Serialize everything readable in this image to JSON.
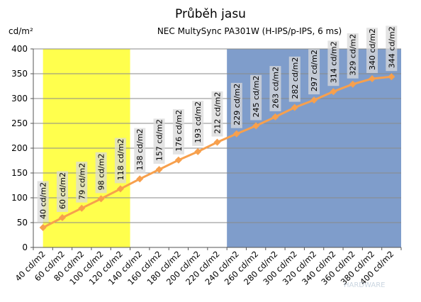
{
  "chart_data": {
    "type": "line",
    "title": "Průběh jasu",
    "subtitle": "NEC MultySync PA301W (H-IPS/p-IPS, 6 ms)",
    "ylabel": "cd/m²",
    "xlabel": "",
    "ylim": [
      0,
      400
    ],
    "yticks": [
      0,
      50,
      100,
      150,
      200,
      250,
      300,
      350,
      400
    ],
    "categories": [
      "40 cd/m2",
      "60 cd/m2",
      "80 cd/m2",
      "100 cd/m2",
      "120 cd/m2",
      "140 cd/m2",
      "160 cd/m2",
      "180 cd/m2",
      "200 cd/m2",
      "220 cd/m2",
      "240 cd/m2",
      "260 cd/m2",
      "280 cd/m2",
      "300 cd/m2",
      "320 cd/m2",
      "340 cd/m2",
      "360 cd/m2",
      "380 cd/m2",
      "400 cd/m2"
    ],
    "series": [
      {
        "color": "#f7a04d",
        "values": [
          40,
          60,
          79,
          98,
          118,
          138,
          157,
          176,
          193,
          212,
          229,
          245,
          263,
          282,
          297,
          314,
          329,
          340,
          344
        ],
        "labels": [
          "40 cd/m2",
          "60 cd/m2",
          "79 cd/m2",
          "98 cd/m2",
          "118 cd/m2",
          "138 cd/m2",
          "157 cd/m2",
          "176 cd/m2",
          "193 cd/m2",
          "212 cd/m2",
          "229 cd/m2",
          "245 cd/m2",
          "263 cd/m2",
          "282 cd/m2",
          "297 cd/m2",
          "314 cd/m2",
          "329 cd/m2",
          "340 cd/m2",
          "344 cd/m2"
        ]
      }
    ],
    "bands": [
      {
        "from_category": 0,
        "to_category": 4.5,
        "color": "#ffff4d"
      },
      {
        "from_category": 9.5,
        "to_category": 18.5,
        "color": "#7f9dcb"
      }
    ],
    "grid": true,
    "legend": "none",
    "watermark": "HARDWARE"
  }
}
